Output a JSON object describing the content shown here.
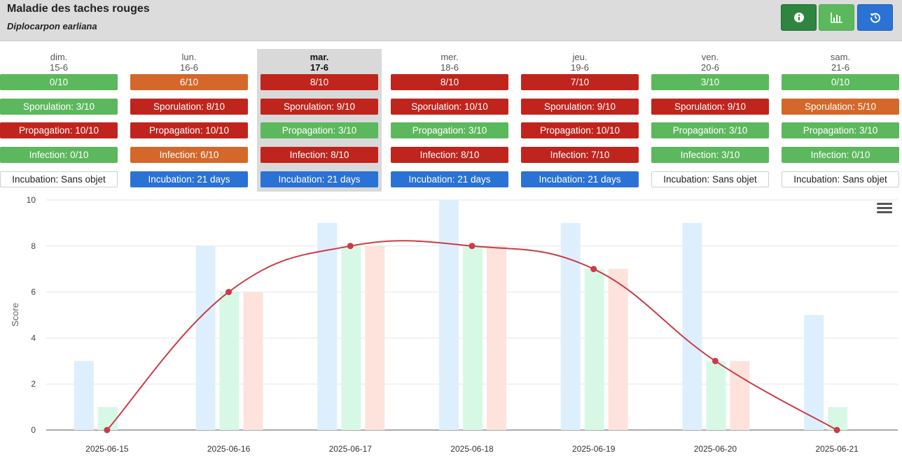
{
  "header": {
    "title": "Maladie des taches rouges",
    "subtitle": "Diplocarpon earliana",
    "buttons": [
      {
        "icon": "info-icon",
        "color": "#2e8540"
      },
      {
        "icon": "bar-chart-icon",
        "color": "#5cb85c"
      },
      {
        "icon": "history-icon",
        "color": "#2a72d4"
      }
    ]
  },
  "colors": {
    "green": "#5cb85c",
    "red": "#c0251d",
    "orange": "#d4682a",
    "blue": "#2a72d4"
  },
  "days": [
    {
      "name": "dim.",
      "date": "15-6",
      "today": false,
      "risk": {
        "text": "0/10",
        "color": "green"
      },
      "sporulation": {
        "text": "Sporulation: 3/10",
        "color": "green"
      },
      "propagation": {
        "text": "Propagation: 10/10",
        "color": "red"
      },
      "infection": {
        "text": "Infection: 0/10",
        "color": "green"
      },
      "incubation": {
        "text": "Incubation: Sans objet",
        "color": "white"
      }
    },
    {
      "name": "lun.",
      "date": "16-6",
      "today": false,
      "risk": {
        "text": "6/10",
        "color": "orange"
      },
      "sporulation": {
        "text": "Sporulation: 8/10",
        "color": "red"
      },
      "propagation": {
        "text": "Propagation: 10/10",
        "color": "red"
      },
      "infection": {
        "text": "Infection: 6/10",
        "color": "orange"
      },
      "incubation": {
        "text": "Incubation: 21 days",
        "color": "blue"
      }
    },
    {
      "name": "mar.",
      "date": "17-6",
      "today": true,
      "risk": {
        "text": "8/10",
        "color": "red"
      },
      "sporulation": {
        "text": "Sporulation: 9/10",
        "color": "red"
      },
      "propagation": {
        "text": "Propagation: 3/10",
        "color": "green"
      },
      "infection": {
        "text": "Infection: 8/10",
        "color": "red"
      },
      "incubation": {
        "text": "Incubation: 21 days",
        "color": "blue"
      }
    },
    {
      "name": "mer.",
      "date": "18-6",
      "today": false,
      "risk": {
        "text": "8/10",
        "color": "red"
      },
      "sporulation": {
        "text": "Sporulation: 10/10",
        "color": "red"
      },
      "propagation": {
        "text": "Propagation: 3/10",
        "color": "green"
      },
      "infection": {
        "text": "Infection: 8/10",
        "color": "red"
      },
      "incubation": {
        "text": "Incubation: 21 days",
        "color": "blue"
      }
    },
    {
      "name": "jeu.",
      "date": "19-6",
      "today": false,
      "risk": {
        "text": "7/10",
        "color": "red"
      },
      "sporulation": {
        "text": "Sporulation: 9/10",
        "color": "red"
      },
      "propagation": {
        "text": "Propagation: 10/10",
        "color": "red"
      },
      "infection": {
        "text": "Infection: 7/10",
        "color": "red"
      },
      "incubation": {
        "text": "Incubation: 21 days",
        "color": "blue"
      }
    },
    {
      "name": "ven.",
      "date": "20-6",
      "today": false,
      "risk": {
        "text": "3/10",
        "color": "green"
      },
      "sporulation": {
        "text": "Sporulation: 9/10",
        "color": "red"
      },
      "propagation": {
        "text": "Propagation: 3/10",
        "color": "green"
      },
      "infection": {
        "text": "Infection: 3/10",
        "color": "green"
      },
      "incubation": {
        "text": "Incubation: Sans objet",
        "color": "white"
      }
    },
    {
      "name": "sam.",
      "date": "21-6",
      "today": false,
      "risk": {
        "text": "0/10",
        "color": "green"
      },
      "sporulation": {
        "text": "Sporulation: 5/10",
        "color": "orange"
      },
      "propagation": {
        "text": "Propagation: 3/10",
        "color": "green"
      },
      "infection": {
        "text": "Infection: 0/10",
        "color": "green"
      },
      "incubation": {
        "text": "Incubation: Sans objet",
        "color": "white"
      }
    }
  ],
  "chart_data": {
    "type": "bar",
    "categories": [
      "2025-06-15",
      "2025-06-16",
      "2025-06-17",
      "2025-06-18",
      "2025-06-19",
      "2025-06-20",
      "2025-06-21"
    ],
    "ylabel": "Score",
    "xlabel": "",
    "ylim": [
      0,
      10
    ],
    "yticks": [
      0,
      2,
      4,
      6,
      8,
      10
    ],
    "grid": true,
    "series": [
      {
        "kind": "bar",
        "values": [
          3,
          8,
          9,
          10,
          9,
          9,
          5
        ],
        "color": "#ddeffd"
      },
      {
        "kind": "bar",
        "values": [
          1,
          6,
          8,
          8,
          7,
          3,
          1
        ],
        "color": "#d8f8e6"
      },
      {
        "kind": "bar",
        "values": [
          0,
          6,
          8,
          8,
          7,
          3,
          0
        ],
        "color": "#fde3dc"
      },
      {
        "kind": "line",
        "values": [
          0,
          6,
          8,
          8,
          7,
          3,
          0
        ],
        "color": "#cc3b47"
      }
    ]
  }
}
